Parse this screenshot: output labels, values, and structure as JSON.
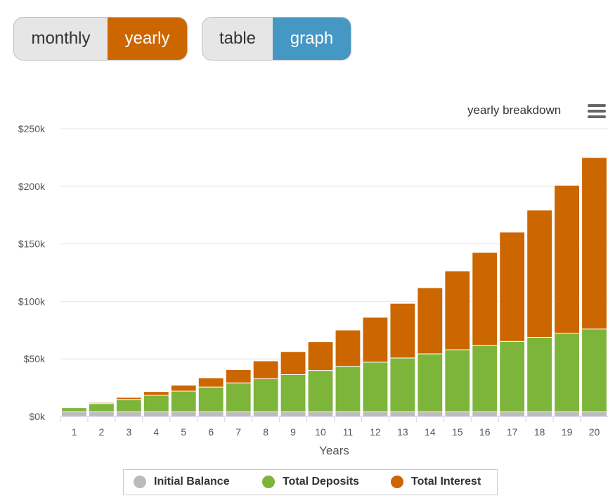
{
  "controls": {
    "period": {
      "monthly_label": "monthly",
      "yearly_label": "yearly",
      "active": "yearly"
    },
    "view": {
      "table_label": "table",
      "graph_label": "graph",
      "active": "graph"
    }
  },
  "chart_title": "yearly breakdown",
  "colors": {
    "initial": "#bbbbbb",
    "deposits": "#7db53b",
    "interest": "#cc6600",
    "grid": "#e6e6e6"
  },
  "chart_data": {
    "type": "bar",
    "stacked": true,
    "xlabel": "Years",
    "ylabel": "",
    "ylim": [
      0,
      250000
    ],
    "y_ticks": [
      0,
      50000,
      100000,
      150000,
      200000,
      250000
    ],
    "y_tick_labels": [
      "$0k",
      "$50k",
      "$100k",
      "$150k",
      "$200k",
      "$250k"
    ],
    "categories": [
      "1",
      "2",
      "3",
      "4",
      "5",
      "6",
      "7",
      "8",
      "9",
      "10",
      "11",
      "12",
      "13",
      "14",
      "15",
      "16",
      "17",
      "18",
      "19",
      "20"
    ],
    "series": [
      {
        "name": "Initial Balance",
        "values": [
          4000,
          4000,
          4000,
          4000,
          4000,
          4000,
          4000,
          4000,
          4000,
          4000,
          4000,
          4000,
          4000,
          4000,
          4000,
          4000,
          4000,
          4000,
          4000,
          4000
        ]
      },
      {
        "name": "Total Deposits",
        "values": [
          3600,
          7200,
          10800,
          14400,
          18000,
          21600,
          25200,
          28800,
          32400,
          36000,
          39600,
          43200,
          46800,
          50400,
          54000,
          57600,
          61200,
          64800,
          68400,
          72000
        ]
      },
      {
        "name": "Total Interest",
        "values": [
          300,
          900,
          1800,
          3200,
          5200,
          8000,
          11500,
          15500,
          20000,
          25000,
          31500,
          39000,
          47500,
          57500,
          68500,
          81000,
          95000,
          110500,
          128500,
          149000
        ]
      }
    ],
    "legend": {
      "position": "bottom"
    }
  }
}
